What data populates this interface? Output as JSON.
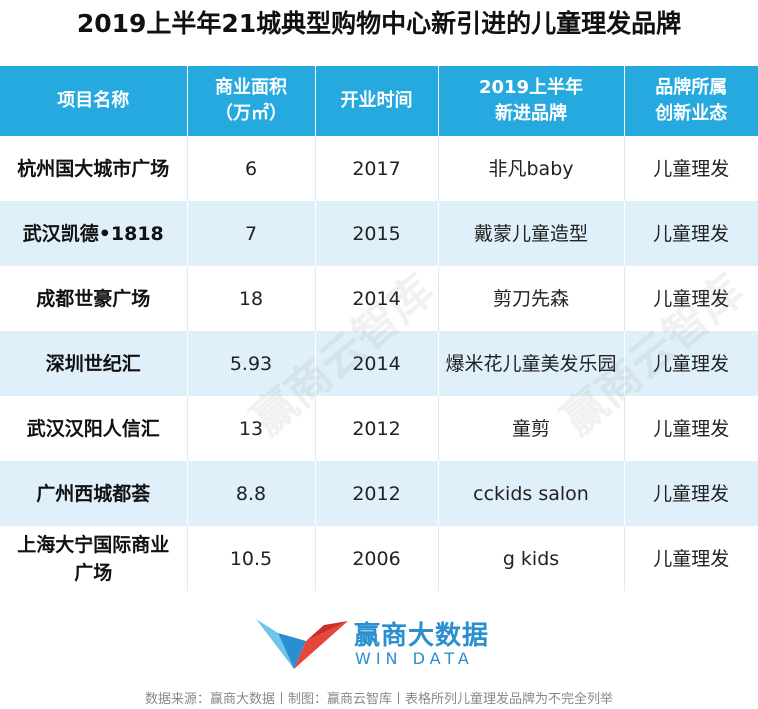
{
  "title": "2019上半年21城典型购物中心新引进的儿童理发品牌",
  "table": {
    "headers": [
      [
        "项目名称"
      ],
      [
        "商业面积",
        "（万㎡）"
      ],
      [
        "开业时间"
      ],
      [
        "2019上半年",
        "新进品牌"
      ],
      [
        "品牌所属",
        "创新业态"
      ]
    ],
    "rows": [
      {
        "name": [
          "杭州国大城市广场"
        ],
        "area": "6",
        "year": "2017",
        "brand": "非凡baby",
        "type": "儿童理发"
      },
      {
        "name": [
          "武汉凯德•1818"
        ],
        "area": "7",
        "year": "2015",
        "brand": "戴蒙儿童造型",
        "type": "儿童理发"
      },
      {
        "name": [
          "成都世豪广场"
        ],
        "area": "18",
        "year": "2014",
        "brand": "剪刀先森",
        "type": "儿童理发"
      },
      {
        "name": [
          "深圳世纪汇"
        ],
        "area": "5.93",
        "year": "2014",
        "brand": "爆米花儿童美发乐园",
        "type": "儿童理发"
      },
      {
        "name": [
          "武汉汉阳人信汇"
        ],
        "area": "13",
        "year": "2012",
        "brand": "童剪",
        "type": "儿童理发"
      },
      {
        "name": [
          "广州西城都荟"
        ],
        "area": "8.8",
        "year": "2012",
        "brand": "cckids salon",
        "type": "儿童理发"
      },
      {
        "name": [
          "上海大宁国际商业",
          "广场"
        ],
        "area": "10.5",
        "year": "2006",
        "brand": "g kids",
        "type": "儿童理发"
      }
    ]
  },
  "watermark": "赢商云智库",
  "logo": {
    "cn": "赢商大数据",
    "en": "WIN DATA"
  },
  "footer": "数据来源：赢商大数据丨制图：赢商云智库丨表格所列儿童理发品牌为不完全列举",
  "colors": {
    "header_bg": "#25a9df",
    "alt_row": "#dff0fa",
    "logo_blue": "#2a8fd0",
    "logo_red": "#e8453c"
  }
}
